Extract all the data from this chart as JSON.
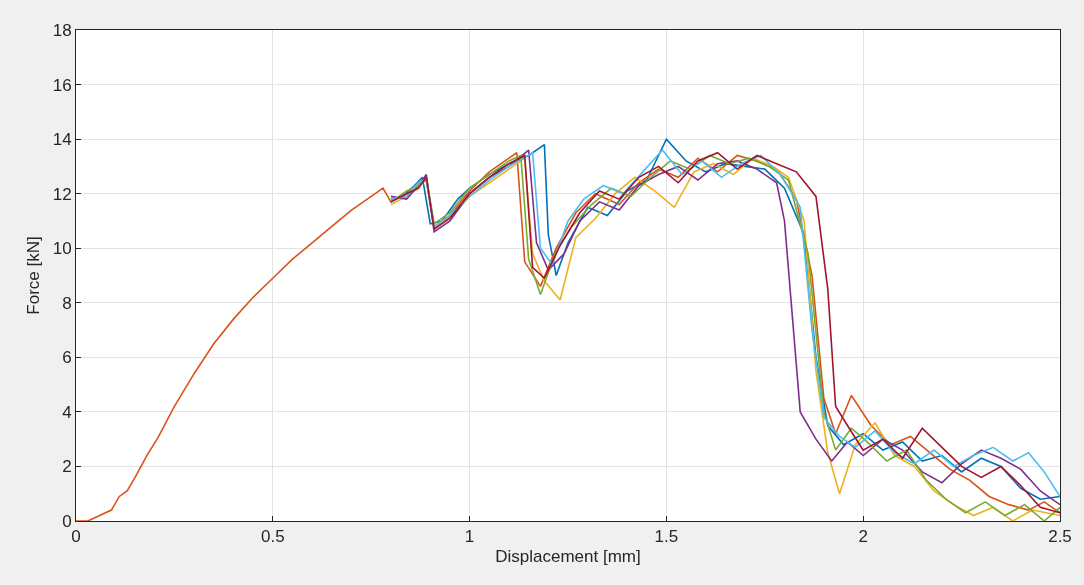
{
  "chart_data": {
    "type": "line",
    "xlabel": "Displacement [mm]",
    "ylabel": "Force [kN]",
    "xlim": [
      0,
      2.5
    ],
    "xticks": [
      0,
      0.5,
      1,
      1.5,
      2,
      2.5
    ],
    "ylim": [
      0,
      18
    ],
    "yticks": [
      0,
      2,
      4,
      6,
      8,
      10,
      12,
      14,
      16,
      18
    ],
    "grid": true,
    "series": [
      {
        "color": "#0072bd",
        "x": [
          0.8,
          0.83,
          0.86,
          0.88,
          0.9,
          0.93,
          0.97,
          1.0,
          1.05,
          1.1,
          1.15,
          1.19,
          1.2,
          1.22,
          1.25,
          1.3,
          1.35,
          1.4,
          1.45,
          1.5,
          1.55,
          1.6,
          1.65,
          1.7,
          1.75,
          1.8,
          1.85,
          1.88,
          1.91,
          1.95,
          2.0,
          2.05,
          2.1,
          2.15,
          2.2,
          2.25,
          2.3,
          2.35,
          2.4,
          2.45,
          2.5
        ],
        "values": [
          11.8,
          11.9,
          12.3,
          12.6,
          10.9,
          11.0,
          11.8,
          12.2,
          12.7,
          13.1,
          13.4,
          13.8,
          10.5,
          9.0,
          10.2,
          11.5,
          11.2,
          12.1,
          12.5,
          14.0,
          13.2,
          12.8,
          13.1,
          13.0,
          12.9,
          12.2,
          10.5,
          6.0,
          3.5,
          2.8,
          3.2,
          2.6,
          2.9,
          2.2,
          2.4,
          1.8,
          2.3,
          2.0,
          1.2,
          0.8,
          0.9
        ]
      },
      {
        "color": "#d95319",
        "x": [
          0,
          0.03,
          0.06,
          0.09,
          0.11,
          0.13,
          0.15,
          0.18,
          0.21,
          0.25,
          0.3,
          0.35,
          0.4,
          0.45,
          0.5,
          0.55,
          0.6,
          0.65,
          0.7,
          0.75,
          0.78,
          0.8,
          0.84,
          0.87,
          0.89,
          0.91,
          0.95,
          1.0,
          1.05,
          1.1,
          1.12,
          1.14,
          1.18,
          1.22,
          1.27,
          1.32,
          1.38,
          1.43,
          1.48,
          1.53,
          1.58,
          1.63,
          1.68,
          1.73,
          1.78,
          1.83,
          1.87,
          1.9,
          1.93,
          1.97,
          2.02,
          2.07,
          2.12,
          2.17,
          2.22,
          2.27,
          2.32,
          2.37,
          2.42,
          2.46,
          2.5
        ],
        "values": [
          0,
          0,
          0.2,
          0.4,
          0.9,
          1.1,
          1.6,
          2.4,
          3.1,
          4.2,
          5.4,
          6.5,
          7.4,
          8.2,
          8.9,
          9.6,
          10.2,
          10.8,
          11.4,
          11.9,
          12.2,
          11.7,
          12.0,
          12.4,
          12.5,
          10.7,
          11.2,
          12.1,
          12.8,
          13.3,
          13.5,
          9.5,
          8.6,
          10.0,
          11.3,
          12.0,
          11.6,
          12.4,
          12.9,
          12.6,
          13.3,
          12.8,
          13.4,
          13.2,
          12.9,
          11.8,
          9.0,
          4.5,
          3.2,
          4.6,
          3.5,
          2.8,
          3.1,
          2.5,
          1.9,
          1.5,
          0.9,
          0.6,
          0.4,
          0.7,
          0.3
        ]
      },
      {
        "color": "#edb120",
        "x": [
          0.8,
          0.84,
          0.87,
          0.89,
          0.91,
          0.95,
          1.0,
          1.05,
          1.1,
          1.14,
          1.16,
          1.19,
          1.23,
          1.27,
          1.32,
          1.37,
          1.42,
          1.47,
          1.52,
          1.57,
          1.62,
          1.67,
          1.72,
          1.77,
          1.81,
          1.85,
          1.88,
          1.91,
          1.94,
          1.98,
          2.03,
          2.08,
          2.13,
          2.18,
          2.23,
          2.28,
          2.33,
          2.38,
          2.43,
          2.5
        ],
        "values": [
          11.6,
          11.9,
          12.2,
          12.6,
          10.8,
          11.1,
          11.9,
          12.4,
          12.9,
          13.3,
          9.8,
          8.8,
          8.1,
          10.4,
          11.1,
          12.0,
          12.6,
          12.1,
          11.5,
          12.8,
          13.1,
          12.7,
          13.3,
          13.0,
          12.6,
          11.0,
          5.5,
          2.5,
          1.0,
          2.8,
          3.6,
          2.4,
          2.0,
          1.1,
          0.6,
          0.2,
          0.5,
          0.0,
          0.4,
          0.2
        ]
      },
      {
        "color": "#7e2f8e",
        "x": [
          0.8,
          0.84,
          0.87,
          0.89,
          0.91,
          0.95,
          1.0,
          1.05,
          1.1,
          1.15,
          1.17,
          1.2,
          1.24,
          1.28,
          1.33,
          1.38,
          1.43,
          1.48,
          1.53,
          1.58,
          1.63,
          1.68,
          1.73,
          1.78,
          1.8,
          1.82,
          1.84,
          1.88,
          1.92,
          1.96,
          2.0,
          2.05,
          2.1,
          2.15,
          2.2,
          2.25,
          2.3,
          2.35,
          2.4,
          2.45,
          2.5
        ],
        "values": [
          11.9,
          11.8,
          12.3,
          12.7,
          10.6,
          11.0,
          12.0,
          12.6,
          13.0,
          13.6,
          10.2,
          9.2,
          9.8,
          11.0,
          11.7,
          11.4,
          12.3,
          12.7,
          13.0,
          12.5,
          13.1,
          13.2,
          12.9,
          12.4,
          11.0,
          7.5,
          4.0,
          3.0,
          2.2,
          2.9,
          2.4,
          3.0,
          2.6,
          1.8,
          1.4,
          2.1,
          2.6,
          2.3,
          1.9,
          1.1,
          0.6
        ]
      },
      {
        "color": "#77ac30",
        "x": [
          0.8,
          0.84,
          0.87,
          0.89,
          0.91,
          0.95,
          1.0,
          1.05,
          1.1,
          1.13,
          1.15,
          1.18,
          1.22,
          1.26,
          1.31,
          1.36,
          1.41,
          1.46,
          1.51,
          1.56,
          1.61,
          1.66,
          1.71,
          1.76,
          1.81,
          1.86,
          1.9,
          1.93,
          1.97,
          2.01,
          2.06,
          2.11,
          2.16,
          2.21,
          2.26,
          2.31,
          2.36,
          2.41,
          2.46,
          2.5
        ],
        "values": [
          11.7,
          12.1,
          12.3,
          12.6,
          10.9,
          11.3,
          12.2,
          12.7,
          13.2,
          13.4,
          9.6,
          8.3,
          9.9,
          10.8,
          11.6,
          12.2,
          11.9,
          12.6,
          13.2,
          12.9,
          13.4,
          13.1,
          13.3,
          13.0,
          12.5,
          9.8,
          4.0,
          2.6,
          3.4,
          2.9,
          2.2,
          2.6,
          1.5,
          0.8,
          0.3,
          0.7,
          0.2,
          0.6,
          0.0,
          0.5
        ]
      },
      {
        "color": "#4dbeee",
        "x": [
          0.8,
          0.84,
          0.87,
          0.89,
          0.91,
          0.95,
          1.0,
          1.05,
          1.1,
          1.16,
          1.18,
          1.21,
          1.25,
          1.29,
          1.34,
          1.39,
          1.44,
          1.49,
          1.54,
          1.59,
          1.64,
          1.69,
          1.74,
          1.79,
          1.84,
          1.87,
          1.9,
          1.94,
          1.98,
          2.03,
          2.08,
          2.13,
          2.18,
          2.23,
          2.28,
          2.33,
          2.38,
          2.42,
          2.46,
          2.5
        ],
        "values": [
          11.8,
          11.9,
          12.4,
          12.5,
          10.8,
          11.2,
          11.9,
          12.5,
          13.0,
          13.5,
          10.0,
          9.4,
          11.0,
          11.8,
          12.3,
          12.0,
          12.8,
          13.6,
          12.7,
          13.2,
          12.6,
          13.1,
          13.4,
          12.7,
          11.5,
          7.0,
          3.8,
          3.1,
          2.7,
          3.3,
          2.5,
          2.1,
          2.6,
          2.0,
          2.4,
          2.7,
          2.2,
          2.5,
          1.8,
          0.9
        ]
      },
      {
        "color": "#a2142f",
        "x": [
          0.8,
          0.84,
          0.87,
          0.89,
          0.91,
          0.95,
          1.0,
          1.05,
          1.1,
          1.14,
          1.16,
          1.19,
          1.23,
          1.28,
          1.33,
          1.38,
          1.43,
          1.48,
          1.53,
          1.58,
          1.63,
          1.68,
          1.73,
          1.78,
          1.83,
          1.88,
          1.91,
          1.93,
          1.96,
          2.0,
          2.05,
          2.1,
          2.15,
          2.2,
          2.25,
          2.3,
          2.35,
          2.4,
          2.45,
          2.5
        ],
        "values": [
          11.7,
          12.0,
          12.2,
          12.6,
          10.7,
          11.1,
          12.0,
          12.6,
          13.1,
          13.4,
          9.3,
          8.9,
          10.1,
          11.3,
          12.1,
          11.8,
          12.6,
          13.0,
          12.4,
          13.2,
          13.5,
          12.9,
          13.4,
          13.1,
          12.8,
          11.9,
          8.5,
          4.2,
          3.5,
          2.6,
          3.0,
          2.3,
          3.4,
          2.7,
          2.0,
          1.6,
          2.0,
          1.3,
          0.5,
          0.3
        ]
      }
    ]
  }
}
